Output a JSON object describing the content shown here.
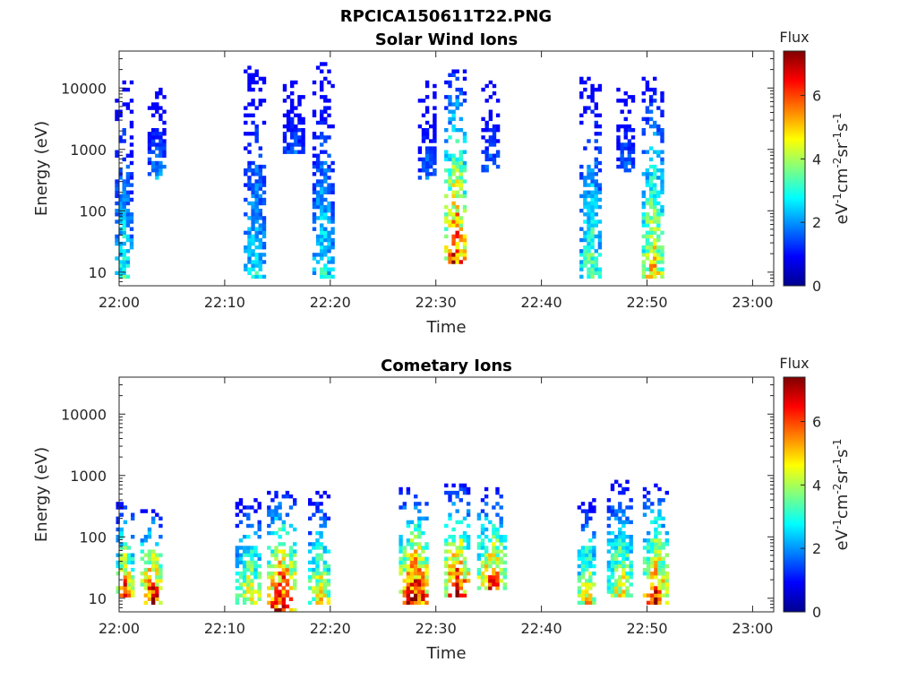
{
  "figure_title": "RPCICA150611T22.PNG",
  "chart_data": [
    {
      "type": "heatmap",
      "title": "Solar Wind Ions",
      "xlabel": "Time",
      "ylabel": "Energy (eV)",
      "y_scale": "log",
      "x_ticks": [
        "22:00",
        "22:10",
        "22:20",
        "22:30",
        "22:40",
        "22:50",
        "23:00"
      ],
      "x_range": [
        "22:00",
        "23:02"
      ],
      "y_ticks": [
        "10",
        "100",
        "1000",
        "10000"
      ],
      "y_range": [
        6,
        40000
      ],
      "colorbar": {
        "title": "Flux",
        "label_base": "eV",
        "label_sup1": "-1",
        "label_mid1": "cm",
        "label_sup2": "-2",
        "label_mid2": "sr",
        "label_sup3": "-1",
        "label_mid3": "s",
        "label_sup4": "-1",
        "ticks": [
          "0",
          "2",
          "4",
          "6"
        ],
        "range": [
          0,
          7.4
        ]
      },
      "bursts": [
        {
          "t": 0.3,
          "emin": 7,
          "emax": 12000,
          "peak": 3.2,
          "width": 0.7
        },
        {
          "t": 3.5,
          "emin": 300,
          "emax": 10000,
          "peak": 2.2,
          "width": 0.8
        },
        {
          "t": 12.7,
          "emin": 7,
          "emax": 25000,
          "peak": 3.0,
          "width": 0.9
        },
        {
          "t": 16.4,
          "emin": 800,
          "emax": 12000,
          "peak": 1.8,
          "width": 0.9
        },
        {
          "t": 19.2,
          "emin": 7,
          "emax": 25000,
          "peak": 3.1,
          "width": 0.9
        },
        {
          "t": 29.1,
          "emin": 300,
          "emax": 12000,
          "peak": 1.9,
          "width": 0.8
        },
        {
          "t": 31.7,
          "emin": 12,
          "emax": 22000,
          "peak": 6.6,
          "width": 0.9
        },
        {
          "t": 35.1,
          "emin": 400,
          "emax": 12000,
          "peak": 1.9,
          "width": 0.8
        },
        {
          "t": 44.5,
          "emin": 7,
          "emax": 14000,
          "peak": 3.8,
          "width": 0.9
        },
        {
          "t": 47.9,
          "emin": 400,
          "emax": 10000,
          "peak": 1.9,
          "width": 0.8
        },
        {
          "t": 50.4,
          "emin": 7,
          "emax": 14000,
          "peak": 5.2,
          "width": 0.9
        }
      ]
    },
    {
      "type": "heatmap",
      "title": "Cometary Ions",
      "xlabel": "Time",
      "ylabel": "Energy (eV)",
      "y_scale": "log",
      "x_ticks": [
        "22:00",
        "22:10",
        "22:20",
        "22:30",
        "22:40",
        "22:50",
        "23:00"
      ],
      "x_range": [
        "22:00",
        "23:02"
      ],
      "y_ticks": [
        "10",
        "100",
        "1000",
        "10000"
      ],
      "y_range": [
        6,
        40000
      ],
      "colorbar": {
        "title": "Flux",
        "label_base": "eV",
        "label_sup1": "-1",
        "label_mid1": "cm",
        "label_sup2": "-2",
        "label_mid2": "sr",
        "label_sup3": "-1",
        "label_mid3": "s",
        "label_sup4": "-1",
        "ticks": [
          "0",
          "2",
          "4",
          "6"
        ],
        "range": [
          0,
          7.4
        ]
      },
      "bursts": [
        {
          "t": 0.4,
          "emin": 10,
          "emax": 350,
          "peak": 6.2,
          "width": 0.7
        },
        {
          "t": 3.0,
          "emin": 7,
          "emax": 250,
          "peak": 7.2,
          "width": 1.0
        },
        {
          "t": 12.2,
          "emin": 7,
          "emax": 400,
          "peak": 5.2,
          "width": 1.2
        },
        {
          "t": 15.3,
          "emin": 6,
          "emax": 500,
          "peak": 7.3,
          "width": 1.3
        },
        {
          "t": 18.9,
          "emin": 7,
          "emax": 500,
          "peak": 5.2,
          "width": 1.0
        },
        {
          "t": 27.9,
          "emin": 7,
          "emax": 600,
          "peak": 7.2,
          "width": 1.4
        },
        {
          "t": 31.9,
          "emin": 10,
          "emax": 700,
          "peak": 7.0,
          "width": 1.1
        },
        {
          "t": 35.2,
          "emin": 12,
          "emax": 600,
          "peak": 6.3,
          "width": 1.3
        },
        {
          "t": 44.2,
          "emin": 7,
          "emax": 400,
          "peak": 5.3,
          "width": 0.8
        },
        {
          "t": 47.4,
          "emin": 10,
          "emax": 900,
          "peak": 5.0,
          "width": 1.2
        },
        {
          "t": 50.7,
          "emin": 7,
          "emax": 700,
          "peak": 6.5,
          "width": 1.1
        }
      ]
    }
  ]
}
